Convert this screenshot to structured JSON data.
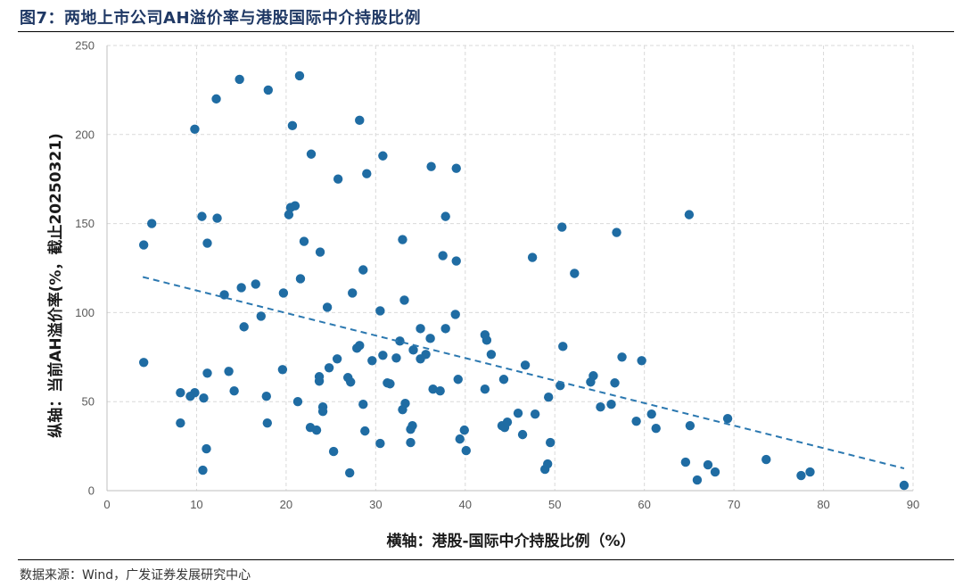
{
  "figure": {
    "title": "图7：两地上市公司AH溢价率与港股国际中介持股比例",
    "source": "数据来源：Wind，广发证券发展研究中心"
  },
  "colors": {
    "point": "#1f6ca3",
    "trend": "#2b78b0",
    "grid": "#d9d9d9",
    "title": "#1f3864"
  },
  "chart_data": {
    "type": "scatter",
    "title": "",
    "xlabel": "横轴：港股-国际中介持股比例（%）",
    "ylabel": "纵轴：当前AH溢价率(%，截止20250321)",
    "xlim": [
      0,
      90
    ],
    "ylim": [
      0,
      250
    ],
    "x_ticks": [
      0,
      10,
      20,
      30,
      40,
      50,
      60,
      70,
      80,
      90
    ],
    "y_ticks": [
      0,
      50,
      100,
      150,
      200,
      250
    ],
    "grid": "horizontal dashed",
    "trendline": {
      "x": [
        4,
        89
      ],
      "y": [
        120,
        12.5
      ],
      "style": "dashed"
    },
    "points": [
      [
        14.8,
        231
      ],
      [
        21.5,
        233
      ],
      [
        18,
        225
      ],
      [
        12.2,
        220
      ],
      [
        9.8,
        203
      ],
      [
        20.7,
        205
      ],
      [
        28.2,
        208
      ],
      [
        22.8,
        189
      ],
      [
        30.8,
        188
      ],
      [
        29,
        178
      ],
      [
        25.8,
        175
      ],
      [
        36.2,
        182
      ],
      [
        39,
        181
      ],
      [
        4.1,
        138
      ],
      [
        5,
        150
      ],
      [
        10.6,
        154
      ],
      [
        12.3,
        153
      ],
      [
        11.2,
        139
      ],
      [
        20.5,
        159
      ],
      [
        21,
        160
      ],
      [
        20.3,
        155
      ],
      [
        22,
        140
      ],
      [
        23.8,
        134
      ],
      [
        33,
        141
      ],
      [
        37.8,
        154
      ],
      [
        37.5,
        132
      ],
      [
        39,
        129
      ],
      [
        50.8,
        148
      ],
      [
        47.5,
        131
      ],
      [
        52.2,
        122
      ],
      [
        56.9,
        145
      ],
      [
        65,
        155
      ],
      [
        13.1,
        110
      ],
      [
        15,
        114
      ],
      [
        16.6,
        116
      ],
      [
        21.6,
        119
      ],
      [
        19.7,
        111
      ],
      [
        28.6,
        124
      ],
      [
        27.4,
        111
      ],
      [
        24.6,
        103
      ],
      [
        30.5,
        101
      ],
      [
        33.2,
        107
      ],
      [
        15.3,
        92
      ],
      [
        17.2,
        98
      ],
      [
        38.9,
        99
      ],
      [
        35,
        91
      ],
      [
        37.8,
        91
      ],
      [
        4.1,
        72
      ],
      [
        8.2,
        55
      ],
      [
        9.3,
        53
      ],
      [
        9.8,
        55
      ],
      [
        10.8,
        52
      ],
      [
        11.2,
        66
      ],
      [
        13.6,
        67
      ],
      [
        14.2,
        56
      ],
      [
        8.2,
        38
      ],
      [
        11.1,
        23.5
      ],
      [
        10.7,
        11.5
      ],
      [
        17.8,
        53
      ],
      [
        17.9,
        38
      ],
      [
        19.6,
        68
      ],
      [
        21.3,
        50
      ],
      [
        22.7,
        35.5
      ],
      [
        23.4,
        34
      ],
      [
        23.7,
        61.5
      ],
      [
        23.7,
        64
      ],
      [
        24.1,
        47
      ],
      [
        24.1,
        44.5
      ],
      [
        24.8,
        69
      ],
      [
        25.3,
        22
      ],
      [
        25.7,
        74
      ],
      [
        26.9,
        63.5
      ],
      [
        27.2,
        61
      ],
      [
        27.9,
        80
      ],
      [
        28.2,
        81.5
      ],
      [
        28.6,
        48.5
      ],
      [
        28.8,
        33.5
      ],
      [
        29.6,
        73
      ],
      [
        27.1,
        10
      ],
      [
        30.5,
        26.5
      ],
      [
        30.8,
        76
      ],
      [
        31.3,
        60.5
      ],
      [
        31.6,
        60
      ],
      [
        32.3,
        74.5
      ],
      [
        32.7,
        84
      ],
      [
        33,
        45.5
      ],
      [
        33.3,
        49
      ],
      [
        33.9,
        34.5
      ],
      [
        33.9,
        27
      ],
      [
        34.1,
        36.5
      ],
      [
        34.2,
        79
      ],
      [
        35,
        74
      ],
      [
        35.6,
        76.5
      ],
      [
        36.1,
        85.5
      ],
      [
        36.4,
        57
      ],
      [
        37.2,
        56
      ],
      [
        39.2,
        62.5
      ],
      [
        39.4,
        29
      ],
      [
        39.9,
        34
      ],
      [
        40.1,
        22.5
      ],
      [
        42.2,
        87.5
      ],
      [
        42.4,
        84.5
      ],
      [
        42.2,
        57
      ],
      [
        42.9,
        76.5
      ],
      [
        44.3,
        62.5
      ],
      [
        44.1,
        36.5
      ],
      [
        44.4,
        35.5
      ],
      [
        44.7,
        38.5
      ],
      [
        45.9,
        43.5
      ],
      [
        46.4,
        31.5
      ],
      [
        46.7,
        70.5
      ],
      [
        47.8,
        43
      ],
      [
        48.9,
        12
      ],
      [
        49.2,
        15
      ],
      [
        49.3,
        52.5
      ],
      [
        49.5,
        27
      ],
      [
        50.6,
        59
      ],
      [
        50.9,
        81
      ],
      [
        54,
        61
      ],
      [
        54.3,
        64.5
      ],
      [
        55.1,
        47
      ],
      [
        56.3,
        48.5
      ],
      [
        56.7,
        60.5
      ],
      [
        57.5,
        75
      ],
      [
        59.1,
        39
      ],
      [
        59.7,
        73
      ],
      [
        60.8,
        43
      ],
      [
        61.3,
        35
      ],
      [
        64.6,
        16
      ],
      [
        65.1,
        36.5
      ],
      [
        65.9,
        6
      ],
      [
        67.1,
        14.5
      ],
      [
        67.9,
        10.5
      ],
      [
        69.3,
        40.5
      ],
      [
        73.6,
        17.5
      ],
      [
        77.5,
        8.5
      ],
      [
        78.5,
        10.5
      ],
      [
        89,
        3
      ]
    ]
  }
}
